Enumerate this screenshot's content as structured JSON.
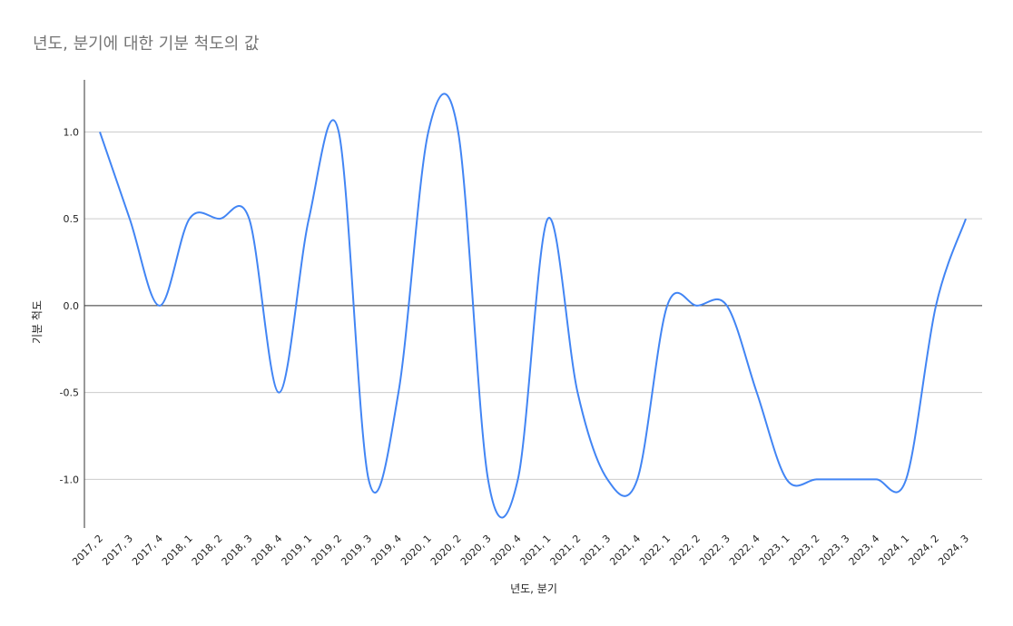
{
  "chart_data": {
    "type": "line",
    "title": "년도, 분기에 대한 기분 척도의 값",
    "xlabel": "년도, 분기",
    "ylabel": "기분 척도",
    "ylim": [
      -1.28,
      1.3
    ],
    "yticks": [
      1.0,
      0.5,
      0.0,
      -0.5,
      -1.0
    ],
    "ytick_labels": [
      "1.0",
      "0.5",
      "0.0",
      "-0.5",
      "-1.0"
    ],
    "grid": true,
    "categories": [
      "2017, 2",
      "2017, 3",
      "2017, 4",
      "2018, 1",
      "2018, 2",
      "2018, 3",
      "2018, 4",
      "2019, 1",
      "2019, 2",
      "2019, 3",
      "2019, 4",
      "2020, 1",
      "2020, 2",
      "2020, 3",
      "2020, 4",
      "2021, 1",
      "2021, 2",
      "2021, 3",
      "2021, 4",
      "2022, 1",
      "2022, 2",
      "2022, 3",
      "2022, 4",
      "2023, 1",
      "2023, 2",
      "2023, 3",
      "2023, 4",
      "2024, 1",
      "2024, 2",
      "2024, 3"
    ],
    "series": [
      {
        "values": [
          1.0,
          0.5,
          0.0,
          0.5,
          0.5,
          0.5,
          -0.5,
          0.5,
          1.0,
          -1.0,
          -0.5,
          1.0,
          1.0,
          -1.0,
          -1.0,
          0.5,
          -0.5,
          -1.0,
          -1.0,
          0.0,
          0.0,
          0.0,
          -0.5,
          -1.0,
          -1.0,
          -1.0,
          -1.0,
          -1.0,
          0.0,
          0.5
        ],
        "color": "#4285f4"
      }
    ]
  }
}
